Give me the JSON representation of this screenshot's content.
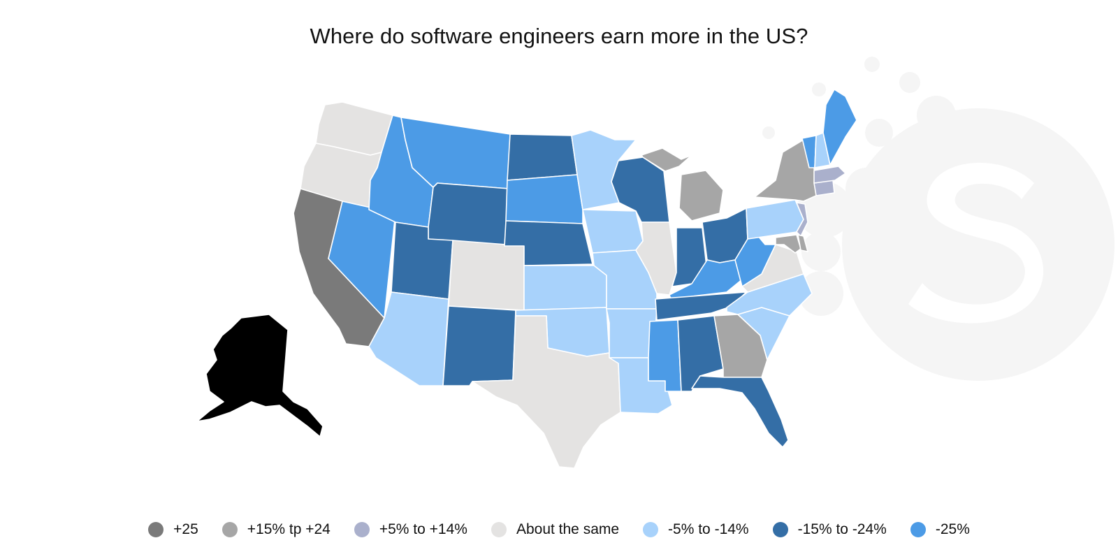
{
  "title": "Where do software engineers earn more in the US?",
  "colors": {
    "plus25": "#7a7a7a",
    "plus15to24": "#a6a6a6",
    "plus5to14": "#aab0cc",
    "same": "#e4e3e2",
    "minus5to14": "#a8d2fb",
    "minus15to24": "#346ea6",
    "minus25": "#4c9be6",
    "alaska": "#000000",
    "watermark": "#f5f5f5"
  },
  "legend": [
    {
      "label": "+25",
      "color": "#7a7a7a"
    },
    {
      "label": "+15% tp +24",
      "color": "#a6a6a6"
    },
    {
      "label": "+5% to +14%",
      "color": "#aab0cc"
    },
    {
      "label": "About the same",
      "color": "#e4e3e2"
    },
    {
      "label": "-5% to -14%",
      "color": "#a8d2fb"
    },
    {
      "label": "-15% to -24%",
      "color": "#346ea6"
    },
    {
      "label": "-25%",
      "color": "#4c9be6"
    }
  ],
  "states": {
    "WA": "same",
    "OR": "same",
    "CA": "plus25",
    "NV": "minus25",
    "ID": "minus25",
    "MT": "minus25",
    "WY": "minus15to24",
    "UT": "minus15to24",
    "AZ": "minus5to14",
    "CO": "same",
    "NM": "minus15to24",
    "ND": "minus15to24",
    "SD": "minus25",
    "NE": "minus15to24",
    "KS": "minus5to14",
    "OK": "minus5to14",
    "TX": "same",
    "MN": "minus5to14",
    "IA": "minus5to14",
    "MO": "minus5to14",
    "AR": "minus5to14",
    "LA": "minus5to14",
    "WI": "minus15to24",
    "IL": "same",
    "MI": "plus15to24",
    "IN": "minus15to24",
    "OH": "minus15to24",
    "KY": "minus25",
    "TN": "minus15to24",
    "MS": "minus25",
    "AL": "minus15to24",
    "GA": "plus15to24",
    "FL": "minus15to24",
    "SC": "minus5to14",
    "NC": "minus5to14",
    "VA": "same",
    "WV": "minus25",
    "PA": "minus5to14",
    "NY": "plus15to24",
    "VT": "minus25",
    "NH": "minus5to14",
    "ME": "minus25",
    "MA": "plus5to14",
    "CT": "plus5to14",
    "NJ": "plus5to14",
    "MD": "plus15to24",
    "DE": "plus15to24",
    "AK": "alaska"
  }
}
